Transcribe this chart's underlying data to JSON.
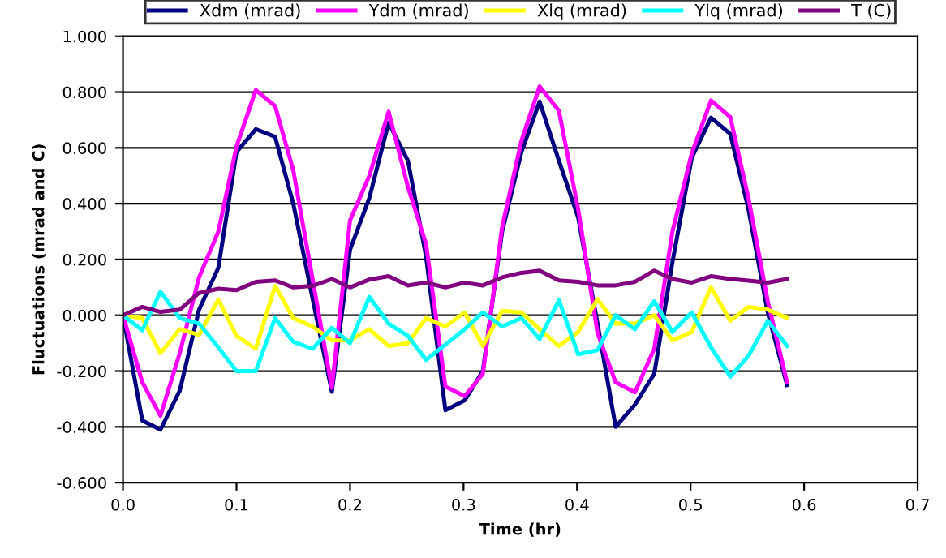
{
  "chart_data": {
    "type": "line",
    "xlabel": "Time (hr)",
    "ylabel": "Fluctuations (mrad and C)",
    "x": [
      0,
      0.017,
      0.033,
      0.05,
      0.067,
      0.084,
      0.1,
      0.117,
      0.134,
      0.15,
      0.167,
      0.184,
      0.2,
      0.217,
      0.234,
      0.251,
      0.267,
      0.284,
      0.301,
      0.317,
      0.334,
      0.351,
      0.367,
      0.384,
      0.401,
      0.418,
      0.434,
      0.451,
      0.468,
      0.484,
      0.501,
      0.518,
      0.535,
      0.551,
      0.568,
      0.585
    ],
    "series": [
      {
        "name": "Xdm (mrad)",
        "color": "#000080",
        "values": [
          0,
          -0.377,
          -0.41,
          -0.27,
          0.02,
          0.17,
          0.585,
          0.667,
          0.64,
          0.4,
          0.06,
          -0.274,
          0.235,
          0.42,
          0.69,
          0.554,
          0.21,
          -0.34,
          -0.305,
          -0.2,
          0.3,
          0.585,
          0.766,
          0.554,
          0.35,
          -0.03,
          -0.4,
          -0.32,
          -0.21,
          0.19,
          0.564,
          0.708,
          0.65,
          0.38,
          0.01,
          -0.25
        ]
      },
      {
        "name": "Ydm (mrad)",
        "color": "#ff00ff",
        "values": [
          0,
          -0.24,
          -0.36,
          -0.136,
          0.136,
          0.3,
          0.605,
          0.807,
          0.75,
          0.52,
          0.13,
          -0.26,
          0.34,
          0.5,
          0.73,
          0.46,
          0.255,
          -0.255,
          -0.29,
          -0.21,
          0.317,
          0.626,
          0.82,
          0.733,
          0.38,
          -0.064,
          -0.24,
          -0.276,
          -0.12,
          0.3,
          0.58,
          0.77,
          0.71,
          0.42,
          0.05,
          -0.24
        ]
      },
      {
        "name": "Xlq (mrad)",
        "color": "#ffff00",
        "values": [
          0,
          -0.01,
          -0.136,
          -0.05,
          -0.07,
          0.056,
          -0.074,
          -0.12,
          0.105,
          -0.01,
          -0.04,
          -0.09,
          -0.09,
          -0.05,
          -0.11,
          -0.1,
          -0.01,
          -0.04,
          0.01,
          -0.11,
          0.016,
          0.01,
          -0.05,
          -0.11,
          -0.06,
          0.058,
          -0.03,
          -0.03,
          0.0,
          -0.09,
          -0.06,
          0.1,
          -0.02,
          0.03,
          0.02,
          -0.01
        ]
      },
      {
        "name": "Ylq (mrad)",
        "color": "#00ffff",
        "values": [
          0,
          -0.054,
          0.085,
          -0.01,
          -0.03,
          -0.115,
          -0.2,
          -0.2,
          -0.01,
          -0.095,
          -0.12,
          -0.045,
          -0.1,
          0.066,
          -0.03,
          -0.074,
          -0.16,
          -0.105,
          -0.05,
          0.01,
          -0.04,
          -0.01,
          -0.085,
          0.054,
          -0.14,
          -0.125,
          0.0,
          -0.05,
          0.05,
          -0.06,
          0.01,
          -0.115,
          -0.22,
          -0.146,
          -0.02,
          -0.11
        ]
      },
      {
        "name": "T (C)",
        "color": "#800080",
        "values": [
          0,
          0.03,
          0.012,
          0.02,
          0.08,
          0.095,
          0.09,
          0.12,
          0.125,
          0.1,
          0.105,
          0.13,
          0.1,
          0.128,
          0.14,
          0.107,
          0.117,
          0.1,
          0.117,
          0.107,
          0.136,
          0.152,
          0.16,
          0.125,
          0.12,
          0.107,
          0.107,
          0.12,
          0.16,
          0.13,
          0.117,
          0.14,
          0.13,
          0.124,
          0.117,
          0.13
        ]
      }
    ],
    "xlim": [
      0,
      0.7
    ],
    "xticks": [
      {
        "value": 0,
        "label": "0.0"
      },
      {
        "value": 0.1,
        "label": "0.1"
      },
      {
        "value": 0.2,
        "label": "0.2"
      },
      {
        "value": 0.3,
        "label": "0.3"
      },
      {
        "value": 0.4,
        "label": "0.4"
      },
      {
        "value": 0.5,
        "label": "0.5"
      },
      {
        "value": 0.6,
        "label": "0.6"
      },
      {
        "value": 0.7,
        "label": "0.7"
      }
    ],
    "ylim": [
      -0.6,
      1.0
    ],
    "yticks": [
      {
        "value": -0.6,
        "label": "-0.600"
      },
      {
        "value": -0.4,
        "label": "-0.400"
      },
      {
        "value": -0.2,
        "label": "-0.200"
      },
      {
        "value": 0,
        "label": "0.000"
      },
      {
        "value": 0.2,
        "label": "0.200"
      },
      {
        "value": 0.4,
        "label": "0.400"
      },
      {
        "value": 0.6,
        "label": "0.600"
      },
      {
        "value": 0.8,
        "label": "0.800"
      },
      {
        "value": 1.0,
        "label": "1.000"
      }
    ],
    "grid": "y",
    "legend": "top",
    "marker": "none",
    "line_style": "solid"
  }
}
